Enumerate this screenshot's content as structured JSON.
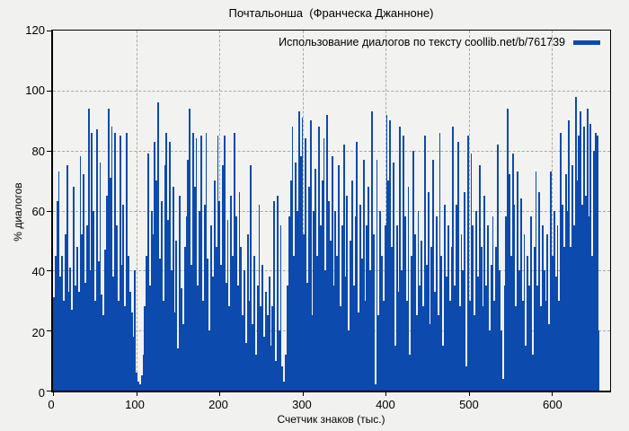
{
  "title": "Почтальонша  (Франческа Джанноне)",
  "legend": {
    "label": "Использование диалогов по тексту coollib.net/b/761739"
  },
  "axes": {
    "xlabel": "Счетчик знаков (тыс.)",
    "ylabel": "% диалогов",
    "x_ticks": [
      0,
      100,
      200,
      300,
      400,
      500,
      600
    ],
    "y_ticks": [
      0,
      20,
      40,
      60,
      80,
      100,
      120
    ],
    "x_grid_at": [
      100,
      200,
      300,
      400,
      500,
      600
    ],
    "y_grid_at": [
      20,
      40,
      60,
      80,
      100
    ]
  },
  "colors": {
    "bar": "#0c4aad",
    "background": "#f1f2f0",
    "plot_background": "#f2f3f1",
    "grid": "#a9aaa8",
    "axis": "#000000"
  },
  "chart_data": {
    "type": "bar",
    "title": "Почтальонша  (Франческа Джанноне)",
    "series_name": "Использование диалогов по тексту coollib.net/b/761739",
    "xlabel": "Счетчик знаков (тыс.)",
    "ylabel": "% диалогов",
    "xlim": [
      0,
      670
    ],
    "ylim": [
      0,
      120
    ],
    "grid": true,
    "legend_position": "top-right",
    "x_start": 1,
    "x_step": 2,
    "values": [
      31,
      45,
      63,
      73,
      38,
      45,
      30,
      52,
      75,
      33,
      41,
      27,
      68,
      35,
      48,
      33,
      78,
      52,
      72,
      36,
      55,
      94,
      40,
      86,
      60,
      30,
      87,
      43,
      76,
      32,
      25,
      47,
      65,
      94,
      71,
      88,
      38,
      86,
      55,
      30,
      85,
      42,
      62,
      28,
      86,
      45,
      33,
      26,
      18,
      40,
      6,
      3,
      2,
      5,
      12,
      28,
      45,
      79,
      35,
      60,
      52,
      83,
      70,
      96,
      44,
      63,
      30,
      75,
      86,
      57,
      83,
      40,
      68,
      26,
      50,
      14,
      65,
      34,
      22,
      48,
      58,
      77,
      94,
      42,
      86,
      68,
      84,
      35,
      60,
      85,
      30,
      62,
      86,
      44,
      20,
      55,
      38,
      70,
      48,
      85,
      63,
      42,
      75,
      85,
      36,
      57,
      28,
      65,
      45,
      86,
      58,
      35,
      66,
      48,
      25,
      40,
      16,
      52,
      30,
      75,
      22,
      45,
      12,
      35,
      62,
      28,
      42,
      18,
      33,
      25,
      38,
      15,
      28,
      63,
      10,
      65,
      20,
      55,
      8,
      3,
      12,
      35,
      58,
      70,
      88,
      45,
      76,
      60,
      93,
      78,
      91,
      52,
      84,
      36,
      68,
      90,
      25,
      60,
      74,
      45,
      88,
      55,
      70,
      84,
      40,
      92,
      63,
      50,
      78,
      35,
      60,
      45,
      75,
      28,
      55,
      82,
      38,
      65,
      20,
      50,
      70,
      35,
      58,
      83,
      26,
      62,
      44,
      77,
      30,
      55,
      68,
      40,
      93,
      52,
      2,
      77,
      25,
      60,
      45,
      30,
      55,
      92,
      70,
      90,
      48,
      76,
      15,
      55,
      33,
      88,
      40,
      85,
      58,
      30,
      68,
      12,
      45,
      80,
      52,
      25,
      60,
      35,
      50,
      28,
      85,
      42,
      66,
      22,
      48,
      77,
      33,
      58,
      25,
      86,
      45,
      15,
      62,
      38,
      55,
      30,
      48,
      88,
      35,
      62,
      83,
      28,
      52,
      40,
      66,
      8,
      85,
      30,
      79,
      55,
      25,
      60,
      38,
      75,
      48,
      28,
      65,
      35,
      55,
      20,
      42,
      58,
      30,
      48,
      82,
      40,
      20,
      4,
      35,
      58,
      94,
      72,
      45,
      79,
      62,
      28,
      73,
      40,
      64,
      30,
      52,
      15,
      45,
      35,
      58,
      12,
      48,
      73,
      35,
      66,
      28,
      55,
      40,
      30,
      52,
      22,
      73,
      45,
      60,
      38,
      55,
      30,
      86,
      62,
      48,
      72,
      60,
      90,
      48,
      75,
      55,
      98,
      70,
      85,
      93,
      62,
      88,
      65,
      94,
      58,
      89,
      45,
      80,
      86,
      85,
      20
    ]
  }
}
